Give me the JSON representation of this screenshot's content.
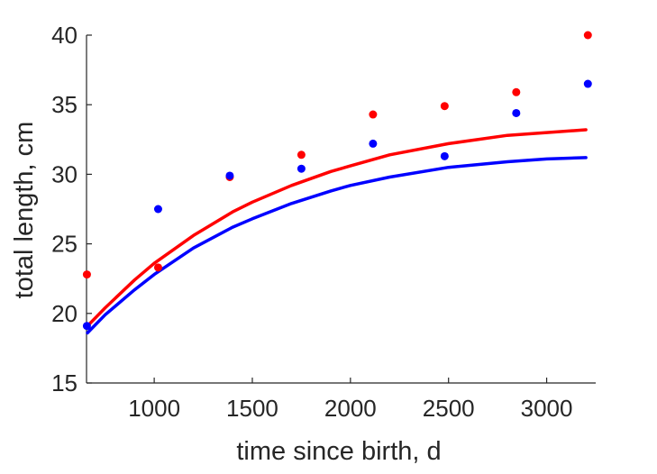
{
  "chart_data": {
    "type": "scatter",
    "title": "",
    "xlabel": "time since birth, d",
    "ylabel": "total length, cm",
    "xlim": [
      655,
      3250
    ],
    "ylim": [
      15,
      40
    ],
    "xticks": [
      1000,
      1500,
      2000,
      2500,
      3000
    ],
    "xtick_labels": [
      "1000",
      "1500",
      "2000",
      "2500",
      "3000"
    ],
    "yticks": [
      15,
      20,
      25,
      30,
      35,
      40
    ],
    "ytick_labels": [
      "15",
      "20",
      "25",
      "30",
      "35",
      "40"
    ],
    "grid": false,
    "legend": "none",
    "series": [
      {
        "color": "#ff0000",
        "points": [
          {
            "x": 657,
            "y": 22.8
          },
          {
            "x": 1020,
            "y": 23.3
          },
          {
            "x": 1385,
            "y": 29.8
          },
          {
            "x": 1750,
            "y": 31.4
          },
          {
            "x": 2115,
            "y": 34.3
          },
          {
            "x": 2480,
            "y": 34.9
          },
          {
            "x": 2845,
            "y": 35.9
          },
          {
            "x": 3210,
            "y": 40.0
          }
        ],
        "fit_curve": [
          {
            "x": 660,
            "y": 19.1
          },
          {
            "x": 750,
            "y": 20.4
          },
          {
            "x": 900,
            "y": 22.4
          },
          {
            "x": 1000,
            "y": 23.6
          },
          {
            "x": 1200,
            "y": 25.6
          },
          {
            "x": 1400,
            "y": 27.3
          },
          {
            "x": 1500,
            "y": 28.0
          },
          {
            "x": 1700,
            "y": 29.2
          },
          {
            "x": 1900,
            "y": 30.2
          },
          {
            "x": 2000,
            "y": 30.6
          },
          {
            "x": 2200,
            "y": 31.4
          },
          {
            "x": 2500,
            "y": 32.2
          },
          {
            "x": 2800,
            "y": 32.8
          },
          {
            "x": 3000,
            "y": 33.0
          },
          {
            "x": 3200,
            "y": 33.2
          }
        ]
      },
      {
        "color": "#0000ff",
        "points": [
          {
            "x": 657,
            "y": 19.1
          },
          {
            "x": 1020,
            "y": 27.5
          },
          {
            "x": 1385,
            "y": 29.9
          },
          {
            "x": 1750,
            "y": 30.4
          },
          {
            "x": 2115,
            "y": 32.2
          },
          {
            "x": 2480,
            "y": 31.3
          },
          {
            "x": 2845,
            "y": 34.4
          },
          {
            "x": 3210,
            "y": 36.5
          }
        ],
        "fit_curve": [
          {
            "x": 660,
            "y": 18.6
          },
          {
            "x": 750,
            "y": 19.9
          },
          {
            "x": 900,
            "y": 21.7
          },
          {
            "x": 1000,
            "y": 22.8
          },
          {
            "x": 1200,
            "y": 24.7
          },
          {
            "x": 1400,
            "y": 26.2
          },
          {
            "x": 1500,
            "y": 26.8
          },
          {
            "x": 1700,
            "y": 27.9
          },
          {
            "x": 1900,
            "y": 28.8
          },
          {
            "x": 2000,
            "y": 29.2
          },
          {
            "x": 2200,
            "y": 29.8
          },
          {
            "x": 2500,
            "y": 30.5
          },
          {
            "x": 2800,
            "y": 30.9
          },
          {
            "x": 3000,
            "y": 31.1
          },
          {
            "x": 3200,
            "y": 31.2
          }
        ]
      }
    ]
  }
}
